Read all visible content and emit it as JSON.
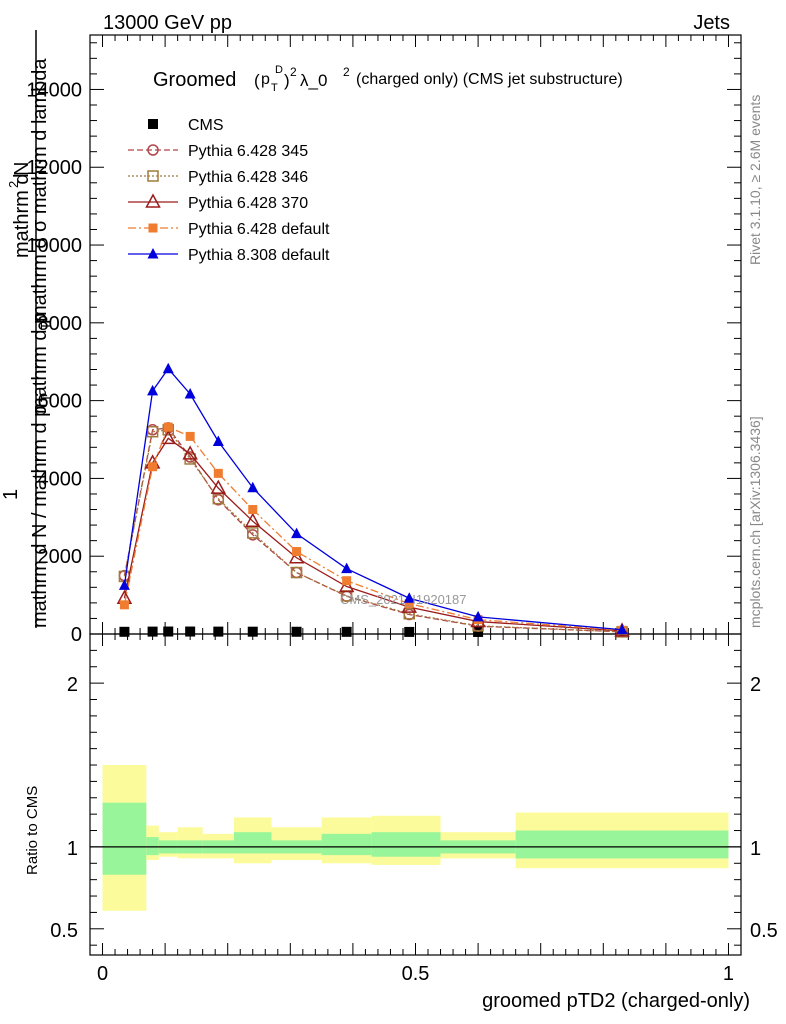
{
  "header": {
    "energy_label": "13000 GeV pp",
    "category_label": "Jets"
  },
  "side_labels": {
    "rivet": "Rivet 3.1.10, ≥ 2.6M events",
    "mcplots": "mcplots.cern.ch [arXiv:1306.3436]"
  },
  "watermark": "CMS_2021_I1920187",
  "colors": {
    "cms": "#000000",
    "p345": "#b2454a",
    "p346": "#a07b3a",
    "p370": "#9b1c1c",
    "p6def": "#f07c30",
    "p8def": "#0000dd",
    "band_inner": "#99f599",
    "band_outer": "#fbfb9b"
  },
  "chart_data": [
    {
      "type": "line",
      "panel": "main",
      "title": "Groomed (p_T^D)^2 λ_0^2  (charged only) (CMS jet substructure)",
      "title_parts": {
        "groomed": "Groomed",
        "p": "p",
        "t_sub": "T",
        "d_sup": "D",
        "paren_open": "(",
        "paren_close": ")",
        "sq": "2",
        "lambda": "λ_0",
        "sq2": "2",
        "rest": "(charged only) (CMS jet substructure)"
      },
      "ylabel": {
        "numerator": "mathrm d^{2}N",
        "one": "1",
        "denominator": "mathrm d N / mathrm d p_T mathrm d σ mathrm d lambda"
      },
      "ylabel_parts": {
        "top1": "mathrm d",
        "top1_sup": "2",
        "top1_end": "N",
        "top2": "mathrm d p",
        "top2_sub": "T",
        "top2_end": "mathrm d σ  mathrm d lambda",
        "one": "1",
        "bottom1": "mathrm d N / mathrm d p",
        "bottom1_sub": "T"
      },
      "xlim": [
        -0.02,
        1.02
      ],
      "ylim": [
        0,
        15400
      ],
      "yticks": [
        0,
        2000,
        4000,
        6000,
        8000,
        10000,
        12000,
        14000
      ],
      "ytick_labels": [
        "0",
        "2000",
        "4000",
        "6000",
        "8000",
        "10000",
        "12000",
        "14000"
      ],
      "x": [
        0.035,
        0.08,
        0.105,
        0.14,
        0.185,
        0.24,
        0.31,
        0.39,
        0.49,
        0.6,
        0.83
      ],
      "series": [
        {
          "name": "CMS",
          "key": "cms",
          "marker": "square",
          "dash": "none",
          "values": [
            5,
            10,
            12,
            12,
            10,
            8,
            6,
            4,
            2,
            1,
            0.5
          ]
        },
        {
          "name": "Pythia 6.428 345",
          "key": "p345",
          "marker": "open-circle",
          "dash": "6,3",
          "values": [
            1500,
            5250,
            5300,
            4550,
            3450,
            2550,
            1580,
            970,
            500,
            200,
            55
          ]
        },
        {
          "name": "Pythia 6.428 346",
          "key": "p346",
          "marker": "open-square",
          "dash": "2,2",
          "values": [
            1480,
            5200,
            5250,
            4500,
            3480,
            2600,
            1580,
            980,
            520,
            210,
            55
          ]
        },
        {
          "name": "Pythia 6.428 370",
          "key": "p370",
          "marker": "open-triangle",
          "dash": "none",
          "values": [
            920,
            4400,
            5030,
            4630,
            3750,
            2900,
            1960,
            1220,
            690,
            320,
            80
          ]
        },
        {
          "name": "Pythia 6.428 default",
          "key": "p6def",
          "marker": "filled-square",
          "dash": "8,3,2,3",
          "values": [
            750,
            4300,
            5320,
            5080,
            4130,
            3200,
            2120,
            1370,
            780,
            370,
            95
          ]
        },
        {
          "name": "Pythia 8.308 default",
          "key": "p8def",
          "marker": "filled-triangle",
          "dash": "none",
          "values": [
            1250,
            6250,
            6820,
            6170,
            4950,
            3760,
            2580,
            1680,
            920,
            440,
            110
          ]
        }
      ]
    },
    {
      "type": "area",
      "panel": "ratio",
      "ylabel": "Ratio to CMS",
      "xlabel": "groomed pTD2 (charged-only)",
      "xlim": [
        -0.02,
        1.02
      ],
      "ylim": [
        0.34,
        2.3
      ],
      "yticks": [
        0.5,
        1,
        2
      ],
      "ytick_labels": [
        "0.5",
        "1",
        "2"
      ],
      "xticks": [
        0,
        0.5,
        1
      ],
      "xtick_labels": [
        "0",
        "0.5",
        "1"
      ],
      "bins": [
        {
          "lo": 0.0,
          "hi": 0.07,
          "inner": [
            0.83,
            1.27
          ],
          "outer": [
            0.61,
            1.5
          ]
        },
        {
          "lo": 0.07,
          "hi": 0.09,
          "inner": [
            0.95,
            1.06
          ],
          "outer": [
            0.92,
            1.13
          ]
        },
        {
          "lo": 0.09,
          "hi": 0.12,
          "inner": [
            0.96,
            1.04
          ],
          "outer": [
            0.94,
            1.09
          ]
        },
        {
          "lo": 0.12,
          "hi": 0.16,
          "inner": [
            0.96,
            1.04
          ],
          "outer": [
            0.93,
            1.12
          ]
        },
        {
          "lo": 0.16,
          "hi": 0.21,
          "inner": [
            0.96,
            1.04
          ],
          "outer": [
            0.93,
            1.08
          ]
        },
        {
          "lo": 0.21,
          "hi": 0.27,
          "inner": [
            0.96,
            1.09
          ],
          "outer": [
            0.9,
            1.18
          ]
        },
        {
          "lo": 0.27,
          "hi": 0.35,
          "inner": [
            0.96,
            1.04
          ],
          "outer": [
            0.92,
            1.12
          ]
        },
        {
          "lo": 0.35,
          "hi": 0.43,
          "inner": [
            0.95,
            1.08
          ],
          "outer": [
            0.9,
            1.18
          ]
        },
        {
          "lo": 0.43,
          "hi": 0.54,
          "inner": [
            0.94,
            1.09
          ],
          "outer": [
            0.89,
            1.19
          ]
        },
        {
          "lo": 0.54,
          "hi": 0.66,
          "inner": [
            0.96,
            1.04
          ],
          "outer": [
            0.93,
            1.09
          ]
        },
        {
          "lo": 0.66,
          "hi": 1.0,
          "inner": [
            0.93,
            1.1
          ],
          "outer": [
            0.87,
            1.21
          ]
        }
      ]
    }
  ]
}
